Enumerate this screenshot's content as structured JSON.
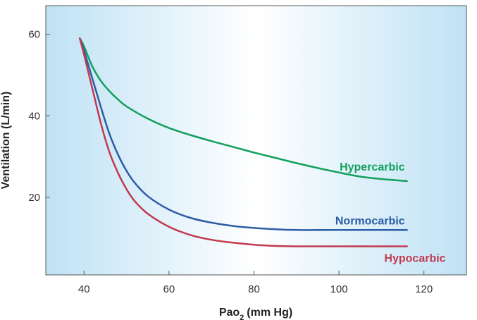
{
  "chart_data": {
    "type": "line",
    "xlabel": "Pao",
    "xlabel_subscript": "2",
    "xlabel_units": "(mm Hg)",
    "ylabel": "Ventilation (L/min)",
    "xlim": [
      31,
      130
    ],
    "ylim": [
      1,
      67
    ],
    "xticks": [
      40,
      60,
      80,
      100,
      120
    ],
    "yticks": [
      20,
      40,
      60
    ],
    "grid": false,
    "legend": "inline labels at the right end of each curve",
    "background": "light blue gradient, white near the center",
    "series": [
      {
        "name": "Hypercarbic",
        "color": "#12a05a",
        "x": [
          39,
          40,
          42,
          44,
          46,
          48,
          50,
          55,
          60,
          65,
          70,
          75,
          80,
          85,
          90,
          95,
          100,
          105,
          110,
          116
        ],
        "y": [
          59,
          57,
          52,
          48.5,
          46,
          44,
          42.3,
          39.3,
          37,
          35.3,
          33.8,
          32.4,
          31.0,
          29.7,
          28.4,
          27.2,
          26.1,
          25.1,
          24.5,
          24
        ]
      },
      {
        "name": "Normocarbic",
        "color": "#2d5ca6",
        "x": [
          39,
          40,
          42,
          44,
          46,
          48,
          50,
          52,
          55,
          60,
          65,
          70,
          75,
          80,
          85,
          90,
          95,
          100,
          110,
          116
        ],
        "y": [
          59,
          56,
          49,
          42,
          35.5,
          30.5,
          26.5,
          23.5,
          20.3,
          17,
          15,
          13.8,
          13,
          12.5,
          12.2,
          12,
          12,
          12,
          12,
          12
        ]
      },
      {
        "name": "Hypocarbic",
        "color": "#c13a4f",
        "x": [
          39,
          40,
          42,
          44,
          46,
          48,
          50,
          52,
          55,
          60,
          65,
          70,
          75,
          80,
          85,
          90,
          100,
          110,
          116
        ],
        "y": [
          59,
          55,
          46.5,
          38,
          31,
          26,
          22,
          19,
          16,
          12.8,
          10.8,
          9.6,
          8.9,
          8.4,
          8.1,
          8,
          8,
          8,
          8
        ]
      }
    ]
  }
}
